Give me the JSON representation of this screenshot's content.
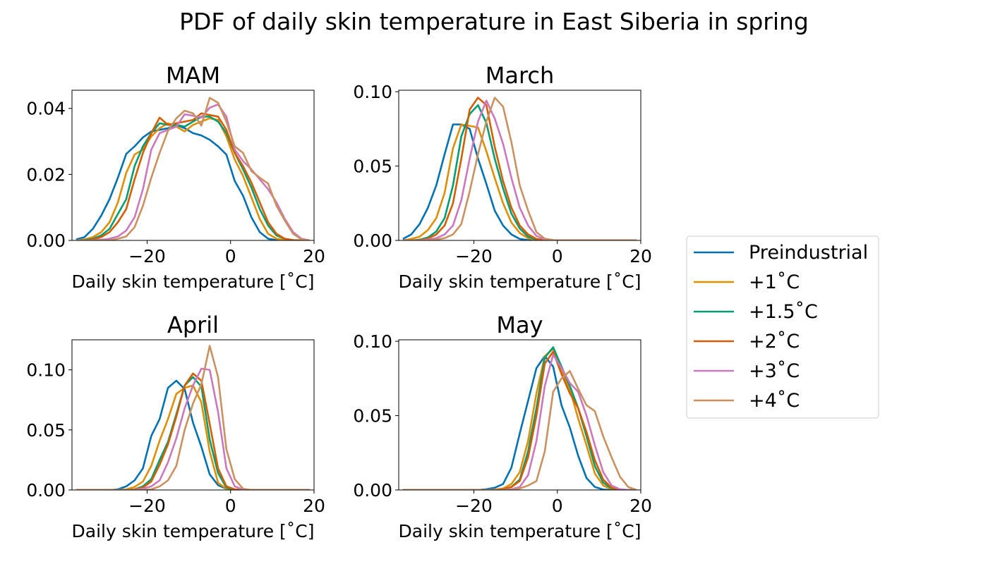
{
  "figure": {
    "suptitle": "PDF of daily skin temperature in East Siberia in spring"
  },
  "legend": {
    "placement": "right-center",
    "entries": [
      {
        "label": "Preindustrial",
        "color": "#0072b2"
      },
      {
        "label": "+1˚C",
        "color": "#de8f05"
      },
      {
        "label": "+1.5˚C",
        "color": "#029e73"
      },
      {
        "label": "+2˚C",
        "color": "#d55e00"
      },
      {
        "label": "+3˚C",
        "color": "#cc78bc"
      },
      {
        "label": "+4˚C",
        "color": "#ca9161"
      }
    ]
  },
  "chart_data": [
    {
      "type": "line",
      "title": "MAM",
      "xlabel": "Daily skin temperature [˚C]",
      "ylabel": "",
      "xlim": [
        -38,
        20
      ],
      "ylim": [
        0,
        0.0455
      ],
      "xticks": [
        {
          "v": -20,
          "label": "−20"
        },
        {
          "v": 0,
          "label": "0"
        },
        {
          "v": 20,
          "label": "20"
        }
      ],
      "yticks": [
        {
          "v": 0,
          "label": "0.00"
        },
        {
          "v": 0.02,
          "label": "0.02"
        },
        {
          "v": 0.04,
          "label": "0.04"
        }
      ],
      "grid": false,
      "x": [
        -37,
        -35,
        -33,
        -31,
        -29,
        -27,
        -25,
        -23,
        -21,
        -19,
        -17,
        -15,
        -13,
        -11,
        -9,
        -7,
        -5,
        -3,
        -1,
        1,
        3,
        5,
        7,
        9,
        11,
        13,
        15,
        17,
        19
      ],
      "series": [
        {
          "name": "Preindustrial",
          "values": [
            0.0003,
            0.001,
            0.0035,
            0.0075,
            0.0125,
            0.019,
            0.0262,
            0.0285,
            0.0312,
            0.033,
            0.0335,
            0.034,
            0.035,
            0.034,
            0.0325,
            0.0318,
            0.0305,
            0.0285,
            0.026,
            0.018,
            0.0135,
            0.007,
            0.0025,
            0.0005,
            0.0001,
            0,
            0,
            0,
            0
          ]
        },
        {
          "name": "+1˚C",
          "values": [
            0,
            0.0003,
            0.001,
            0.0025,
            0.0055,
            0.0115,
            0.0205,
            0.026,
            0.0275,
            0.0315,
            0.034,
            0.0355,
            0.0345,
            0.033,
            0.035,
            0.036,
            0.037,
            0.0365,
            0.0315,
            0.0245,
            0.0195,
            0.013,
            0.0065,
            0.002,
            0.0005,
            0.0001,
            0,
            0,
            0
          ]
        },
        {
          "name": "+1.5˚C",
          "values": [
            0,
            0.0001,
            0.0005,
            0.0015,
            0.0035,
            0.008,
            0.0125,
            0.0225,
            0.0285,
            0.0325,
            0.0355,
            0.035,
            0.035,
            0.0345,
            0.036,
            0.0375,
            0.0375,
            0.036,
            0.0325,
            0.0265,
            0.0215,
            0.016,
            0.0095,
            0.0045,
            0.0015,
            0.0005,
            0,
            0,
            0
          ]
        },
        {
          "name": "+2˚C",
          "values": [
            0,
            0,
            0.0003,
            0.001,
            0.0025,
            0.0055,
            0.0095,
            0.0185,
            0.0265,
            0.0325,
            0.0372,
            0.035,
            0.0355,
            0.036,
            0.0365,
            0.0385,
            0.038,
            0.0375,
            0.0335,
            0.0265,
            0.0225,
            0.0175,
            0.0115,
            0.0055,
            0.002,
            0.0005,
            0.0001,
            0,
            0
          ]
        },
        {
          "name": "+3˚C",
          "values": [
            0,
            0,
            0,
            0.0002,
            0.0005,
            0.0012,
            0.003,
            0.007,
            0.0155,
            0.0275,
            0.0325,
            0.0335,
            0.0345,
            0.0382,
            0.0378,
            0.0372,
            0.0402,
            0.0412,
            0.0375,
            0.0275,
            0.024,
            0.0215,
            0.0185,
            0.0155,
            0.0115,
            0.0065,
            0.0025,
            0.0005,
            0
          ]
        },
        {
          "name": "+4˚C",
          "values": [
            0,
            0,
            0,
            0,
            0,
            0.0005,
            0.0012,
            0.004,
            0.0105,
            0.019,
            0.0265,
            0.0332,
            0.037,
            0.0393,
            0.0385,
            0.0348,
            0.0432,
            0.0417,
            0.036,
            0.0285,
            0.0265,
            0.021,
            0.019,
            0.0172,
            0.0105,
            0.006,
            0.002,
            0.0003,
            0
          ]
        }
      ]
    },
    {
      "type": "line",
      "title": "March",
      "xlabel": "Daily skin temperature [˚C]",
      "ylabel": "",
      "xlim": [
        -38,
        20
      ],
      "ylim": [
        0,
        0.101
      ],
      "xticks": [
        {
          "v": -20,
          "label": "−20"
        },
        {
          "v": 0,
          "label": "0"
        },
        {
          "v": 20,
          "label": "20"
        }
      ],
      "yticks": [
        {
          "v": 0,
          "label": "0.00"
        },
        {
          "v": 0.05,
          "label": "0.05"
        },
        {
          "v": 0.1,
          "label": "0.10"
        }
      ],
      "grid": false,
      "x": [
        -37,
        -35,
        -33,
        -31,
        -29,
        -27,
        -25,
        -23,
        -21,
        -19,
        -17,
        -15,
        -13,
        -11,
        -9,
        -7,
        -5,
        -3,
        -1,
        1,
        3,
        5,
        7,
        9,
        11,
        13,
        15,
        17,
        19
      ],
      "series": [
        {
          "name": "Preindustrial",
          "values": [
            0.001,
            0.004,
            0.011,
            0.022,
            0.037,
            0.058,
            0.078,
            0.078,
            0.075,
            0.055,
            0.038,
            0.02,
            0.01,
            0.004,
            0.001,
            0.0002,
            0,
            0,
            0,
            0,
            0,
            0,
            0,
            0,
            0,
            0,
            0,
            0,
            0
          ]
        },
        {
          "name": "+1˚C",
          "values": [
            0,
            0.001,
            0.0025,
            0.007,
            0.015,
            0.032,
            0.062,
            0.078,
            0.077,
            0.076,
            0.06,
            0.042,
            0.025,
            0.012,
            0.005,
            0.0015,
            0.0003,
            0,
            0,
            0,
            0,
            0,
            0,
            0,
            0,
            0,
            0,
            0,
            0
          ]
        },
        {
          "name": "+1.5˚C",
          "values": [
            0,
            0,
            0.0005,
            0.002,
            0.006,
            0.015,
            0.037,
            0.07,
            0.085,
            0.091,
            0.079,
            0.055,
            0.035,
            0.018,
            0.008,
            0.0025,
            0.0005,
            0,
            0,
            0,
            0,
            0,
            0,
            0,
            0,
            0,
            0,
            0,
            0
          ]
        },
        {
          "name": "+2˚C",
          "values": [
            0,
            0,
            0.0003,
            0.0012,
            0.004,
            0.01,
            0.025,
            0.055,
            0.088,
            0.096,
            0.091,
            0.063,
            0.04,
            0.022,
            0.01,
            0.004,
            0.001,
            0.0002,
            0,
            0,
            0,
            0,
            0,
            0,
            0,
            0,
            0,
            0,
            0
          ]
        },
        {
          "name": "+3˚C",
          "values": [
            0,
            0,
            0,
            0.0005,
            0.0015,
            0.004,
            0.01,
            0.027,
            0.055,
            0.08,
            0.094,
            0.082,
            0.065,
            0.042,
            0.022,
            0.01,
            0.003,
            0.0005,
            0,
            0,
            0,
            0,
            0,
            0,
            0,
            0,
            0,
            0,
            0
          ]
        },
        {
          "name": "+4˚C",
          "values": [
            0,
            0,
            0,
            0,
            0.0005,
            0.0015,
            0.004,
            0.011,
            0.033,
            0.058,
            0.08,
            0.096,
            0.09,
            0.066,
            0.037,
            0.02,
            0.0055,
            0.0012,
            0.0002,
            0,
            0,
            0,
            0,
            0,
            0,
            0,
            0,
            0,
            0
          ]
        }
      ]
    },
    {
      "type": "line",
      "title": "April",
      "xlabel": "Daily skin temperature [˚C]",
      "ylabel": "",
      "xlim": [
        -38,
        20
      ],
      "ylim": [
        0,
        0.125
      ],
      "xticks": [
        {
          "v": -20,
          "label": "−20"
        },
        {
          "v": 0,
          "label": "0"
        },
        {
          "v": 20,
          "label": "20"
        }
      ],
      "yticks": [
        {
          "v": 0,
          "label": "0.00"
        },
        {
          "v": 0.05,
          "label": "0.05"
        },
        {
          "v": 0.1,
          "label": "0.10"
        }
      ],
      "grid": false,
      "x": [
        -37,
        -35,
        -33,
        -31,
        -29,
        -27,
        -25,
        -23,
        -21,
        -19,
        -17,
        -15,
        -13,
        -11,
        -9,
        -7,
        -5,
        -3,
        -1,
        1,
        3,
        5,
        7,
        9,
        11,
        13,
        15,
        17,
        19
      ],
      "series": [
        {
          "name": "Preindustrial",
          "values": [
            0,
            0,
            0,
            0,
            0,
            0.0005,
            0.003,
            0.008,
            0.018,
            0.045,
            0.059,
            0.085,
            0.091,
            0.084,
            0.056,
            0.036,
            0.013,
            0.004,
            0.001,
            0,
            0,
            0,
            0,
            0,
            0,
            0,
            0,
            0,
            0
          ]
        },
        {
          "name": "+1˚C",
          "values": [
            0,
            0,
            0,
            0,
            0,
            0,
            0.0005,
            0.0025,
            0.007,
            0.02,
            0.041,
            0.059,
            0.08,
            0.085,
            0.087,
            0.073,
            0.032,
            0.006,
            0.001,
            0,
            0,
            0,
            0,
            0,
            0,
            0,
            0,
            0,
            0
          ]
        },
        {
          "name": "+1.5˚C",
          "values": [
            0,
            0,
            0,
            0,
            0,
            0,
            0,
            0.0005,
            0.003,
            0.009,
            0.025,
            0.04,
            0.063,
            0.087,
            0.094,
            0.086,
            0.042,
            0.014,
            0.002,
            0.0003,
            0,
            0,
            0,
            0,
            0,
            0,
            0,
            0,
            0
          ]
        },
        {
          "name": "+2˚C",
          "values": [
            0,
            0,
            0,
            0,
            0,
            0,
            0,
            0.0005,
            0.002,
            0.007,
            0.021,
            0.038,
            0.061,
            0.087,
            0.097,
            0.091,
            0.055,
            0.018,
            0.003,
            0.0005,
            0,
            0,
            0,
            0,
            0,
            0,
            0,
            0,
            0
          ]
        },
        {
          "name": "+3˚C",
          "values": [
            0,
            0,
            0,
            0,
            0,
            0,
            0,
            0,
            0.001,
            0.003,
            0.008,
            0.023,
            0.043,
            0.068,
            0.087,
            0.101,
            0.1,
            0.065,
            0.018,
            0.003,
            0.0003,
            0,
            0,
            0,
            0,
            0,
            0,
            0,
            0
          ]
        },
        {
          "name": "+4˚C",
          "values": [
            0,
            0,
            0,
            0,
            0,
            0,
            0,
            0,
            0,
            0.0005,
            0.003,
            0.008,
            0.02,
            0.05,
            0.072,
            0.088,
            0.12,
            0.094,
            0.034,
            0.009,
            0.001,
            0,
            0,
            0,
            0,
            0,
            0,
            0,
            0
          ]
        }
      ]
    },
    {
      "type": "line",
      "title": "May",
      "xlabel": "Daily skin temperature [˚C]",
      "ylabel": "",
      "xlim": [
        -38,
        20
      ],
      "ylim": [
        0,
        0.101
      ],
      "xticks": [
        {
          "v": -20,
          "label": "−20"
        },
        {
          "v": 0,
          "label": "0"
        },
        {
          "v": 20,
          "label": "20"
        }
      ],
      "yticks": [
        {
          "v": 0,
          "label": "0.00"
        },
        {
          "v": 0.05,
          "label": "0.05"
        },
        {
          "v": 0.1,
          "label": "0.10"
        }
      ],
      "grid": false,
      "x": [
        -37,
        -35,
        -33,
        -31,
        -29,
        -27,
        -25,
        -23,
        -21,
        -19,
        -17,
        -15,
        -13,
        -11,
        -9,
        -7,
        -5,
        -3,
        -1,
        1,
        3,
        5,
        7,
        9,
        11,
        13,
        15,
        17,
        19
      ],
      "series": [
        {
          "name": "Preindustrial",
          "values": [
            0,
            0,
            0,
            0,
            0,
            0,
            0,
            0,
            0,
            0,
            0.0005,
            0.0015,
            0.004,
            0.015,
            0.038,
            0.06,
            0.082,
            0.09,
            0.083,
            0.057,
            0.042,
            0.023,
            0.008,
            0.002,
            0.0003,
            0,
            0,
            0,
            0
          ]
        },
        {
          "name": "+1˚C",
          "values": [
            0,
            0,
            0,
            0,
            0,
            0,
            0,
            0,
            0,
            0,
            0,
            0.0003,
            0.001,
            0.004,
            0.012,
            0.033,
            0.065,
            0.09,
            0.095,
            0.08,
            0.068,
            0.048,
            0.03,
            0.011,
            0.003,
            0.0005,
            0,
            0,
            0
          ]
        },
        {
          "name": "+1.5˚C",
          "values": [
            0,
            0,
            0,
            0,
            0,
            0,
            0,
            0,
            0,
            0,
            0,
            0,
            0.0005,
            0.002,
            0.007,
            0.026,
            0.055,
            0.089,
            0.096,
            0.083,
            0.07,
            0.055,
            0.036,
            0.016,
            0.005,
            0.001,
            0,
            0,
            0
          ]
        },
        {
          "name": "+2˚C",
          "values": [
            0,
            0,
            0,
            0,
            0,
            0,
            0,
            0,
            0,
            0,
            0,
            0,
            0.0005,
            0.002,
            0.006,
            0.022,
            0.05,
            0.085,
            0.093,
            0.078,
            0.065,
            0.055,
            0.039,
            0.02,
            0.007,
            0.0015,
            0,
            0,
            0
          ]
        },
        {
          "name": "+3˚C",
          "values": [
            0,
            0,
            0,
            0,
            0,
            0,
            0,
            0,
            0,
            0,
            0,
            0,
            0,
            0.0005,
            0.002,
            0.01,
            0.033,
            0.07,
            0.091,
            0.082,
            0.072,
            0.066,
            0.05,
            0.03,
            0.012,
            0.003,
            0.0005,
            0,
            0
          ]
        },
        {
          "name": "+4˚C",
          "values": [
            0,
            0,
            0,
            0,
            0,
            0,
            0,
            0,
            0,
            0,
            0,
            0,
            0,
            0,
            0.001,
            0.003,
            0.006,
            0.026,
            0.066,
            0.075,
            0.08,
            0.068,
            0.057,
            0.053,
            0.036,
            0.022,
            0.009,
            0.002,
            0
          ]
        }
      ]
    }
  ]
}
